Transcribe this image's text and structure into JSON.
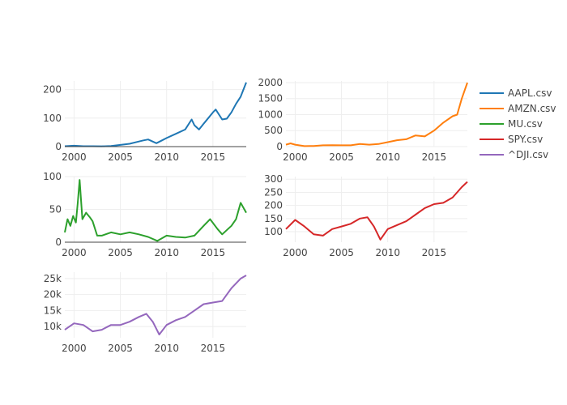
{
  "chart_data": {
    "type": "line",
    "layout": "subplots-3x2",
    "legend": {
      "position": "right",
      "entries": [
        "AAPL.csv",
        "AMZN.csv",
        "MU.csv",
        "SPY.csv",
        "^DJI.csv"
      ]
    },
    "grid": true,
    "subplots": [
      {
        "name": "AAPL.csv",
        "color": "#1f77b4",
        "xlim": [
          1999,
          2018.6
        ],
        "ylim": [
          0,
          230
        ],
        "xticks": [
          2000,
          2005,
          2010,
          2015
        ],
        "xtick_labels": [
          "2000",
          "2005",
          "2010",
          "2015"
        ],
        "yticks": [
          0,
          100,
          200
        ],
        "ytick_labels": [
          "0",
          "100",
          "200"
        ],
        "zero_line": true,
        "x": [
          1999,
          2000,
          2001,
          2002,
          2003,
          2004,
          2005,
          2006,
          2007,
          2007.5,
          2008,
          2008.9,
          2009.5,
          2010,
          2011,
          2012,
          2012.7,
          2013,
          2013.5,
          2014,
          2015,
          2015.3,
          2016,
          2016.5,
          2017,
          2017.5,
          2018,
          2018.6
        ],
        "y": [
          1.5,
          3,
          1.5,
          1.5,
          1,
          2,
          6,
          10,
          18,
          22,
          25,
          12,
          22,
          30,
          45,
          60,
          95,
          75,
          60,
          80,
          120,
          130,
          95,
          98,
          120,
          150,
          175,
          225
        ]
      },
      {
        "name": "AMZN.csv",
        "color": "#ff7f0e",
        "xlim": [
          1999,
          2018.6
        ],
        "ylim": [
          0,
          2050
        ],
        "xticks": [
          2000,
          2005,
          2010,
          2015
        ],
        "xtick_labels": [
          "2000",
          "2005",
          "2010",
          "2015"
        ],
        "yticks": [
          0,
          500,
          1000,
          1500,
          2000
        ],
        "ytick_labels": [
          "0",
          "500",
          "1000",
          "1500",
          "2000"
        ],
        "zero_line": false,
        "x": [
          1999,
          1999.5,
          2000,
          2001,
          2002,
          2003,
          2004,
          2005,
          2006,
          2007,
          2008,
          2009,
          2010,
          2011,
          2012,
          2013,
          2014,
          2015,
          2016,
          2017,
          2017.5,
          2018,
          2018.6
        ],
        "y": [
          60,
          100,
          60,
          15,
          20,
          40,
          45,
          40,
          40,
          80,
          60,
          80,
          140,
          200,
          230,
          350,
          320,
          500,
          750,
          950,
          1000,
          1500,
          2000
        ]
      },
      {
        "name": "MU.csv",
        "color": "#2ca02c",
        "xlim": [
          1999,
          2018.6
        ],
        "ylim": [
          0,
          100
        ],
        "xticks": [
          2000,
          2005,
          2010,
          2015
        ],
        "xtick_labels": [
          "2000",
          "2005",
          "2010",
          "2015"
        ],
        "yticks": [
          0,
          50,
          100
        ],
        "ytick_labels": [
          "0",
          "50",
          "100"
        ],
        "zero_line": true,
        "x": [
          1999,
          1999.3,
          1999.6,
          1999.9,
          2000.2,
          2000.4,
          2000.6,
          2000.9,
          2001.3,
          2001.7,
          2002,
          2002.5,
          2003,
          2004,
          2005,
          2006,
          2007,
          2008,
          2009,
          2010,
          2011,
          2012,
          2013,
          2014,
          2014.7,
          2015.5,
          2016,
          2017,
          2017.5,
          2018,
          2018.6
        ],
        "y": [
          15,
          35,
          25,
          40,
          30,
          60,
          95,
          35,
          45,
          38,
          32,
          10,
          10,
          15,
          12,
          15,
          12,
          8,
          2,
          10,
          8,
          7,
          10,
          25,
          35,
          20,
          12,
          25,
          35,
          60,
          45
        ]
      },
      {
        "name": "SPY.csv",
        "color": "#d62728",
        "xlim": [
          1999,
          2018.6
        ],
        "ylim": [
          60,
          310
        ],
        "xticks": [
          2000,
          2005,
          2010,
          2015
        ],
        "xtick_labels": [
          "2000",
          "2005",
          "2010",
          "2015"
        ],
        "yticks": [
          100,
          150,
          200,
          250,
          300
        ],
        "ytick_labels": [
          "100",
          "150",
          "200",
          "250",
          "300"
        ],
        "zero_line": false,
        "x": [
          1999,
          2000,
          2001,
          2002,
          2003,
          2004,
          2005,
          2006,
          2007,
          2007.8,
          2008.5,
          2009.2,
          2010,
          2011,
          2012,
          2013,
          2014,
          2015,
          2016,
          2017,
          2018,
          2018.6
        ],
        "y": [
          110,
          145,
          120,
          90,
          85,
          110,
          120,
          130,
          150,
          155,
          120,
          70,
          110,
          125,
          140,
          165,
          190,
          205,
          210,
          230,
          270,
          290
        ]
      },
      {
        "name": "^DJI.csv",
        "color": "#9467bd",
        "xlim": [
          1999,
          2018.6
        ],
        "ylim": [
          6500,
          27000
        ],
        "xticks": [
          2000,
          2005,
          2010,
          2015
        ],
        "xtick_labels": [
          "2000",
          "2005",
          "2010",
          "2015"
        ],
        "yticks": [
          10000,
          15000,
          20000,
          25000
        ],
        "ytick_labels": [
          "10k",
          "15k",
          "20k",
          "25k"
        ],
        "zero_line": false,
        "x": [
          1999,
          2000,
          2001,
          2002,
          2003,
          2004,
          2005,
          2006,
          2007,
          2007.8,
          2008.5,
          2009.2,
          2010,
          2011,
          2012,
          2013,
          2014,
          2015,
          2016,
          2017,
          2018,
          2018.6
        ],
        "y": [
          9000,
          11000,
          10500,
          8500,
          9000,
          10500,
          10500,
          11500,
          13000,
          14000,
          11500,
          7500,
          10500,
          12000,
          13000,
          15000,
          17000,
          17500,
          18000,
          22000,
          25000,
          26000
        ]
      }
    ]
  }
}
